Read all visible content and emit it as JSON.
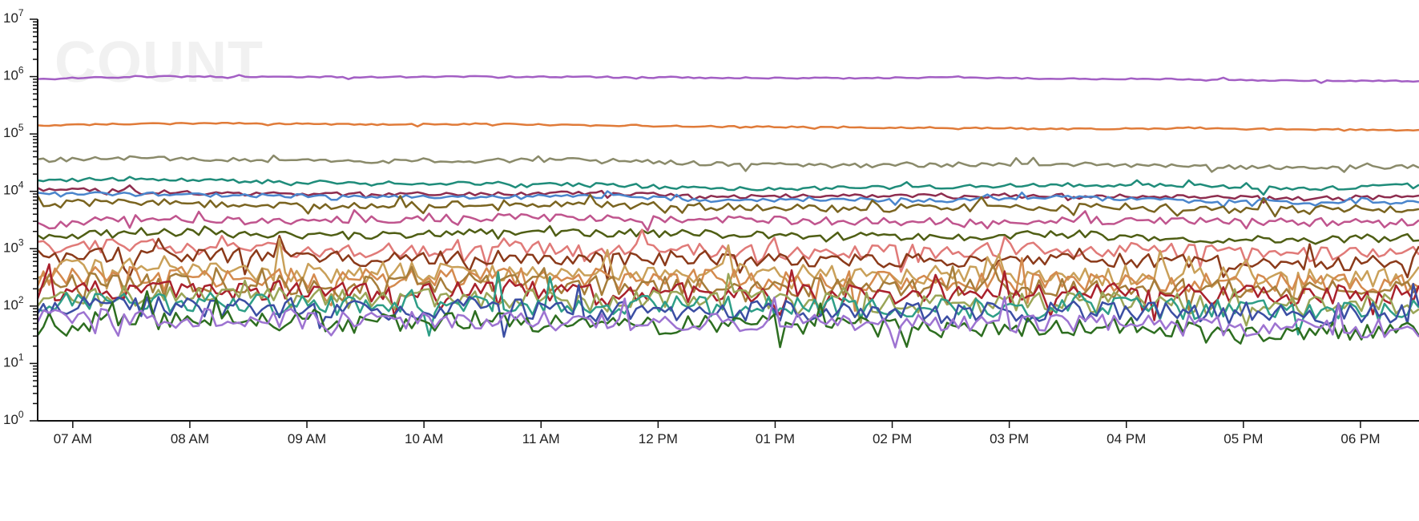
{
  "chart_data": {
    "type": "line",
    "title": "",
    "watermark": "COUNT",
    "xlabel": "",
    "ylabel": "",
    "y_scale": "log",
    "ylim": [
      1,
      10000000
    ],
    "y_tick_labels": [
      {
        "base": "10",
        "exp": "0",
        "value": 1
      },
      {
        "base": "10",
        "exp": "1",
        "value": 10
      },
      {
        "base": "10",
        "exp": "2",
        "value": 100
      },
      {
        "base": "10",
        "exp": "3",
        "value": 1000
      },
      {
        "base": "10",
        "exp": "4",
        "value": 10000
      },
      {
        "base": "10",
        "exp": "5",
        "value": 100000
      },
      {
        "base": "10",
        "exp": "6",
        "value": 1000000
      },
      {
        "base": "10",
        "exp": "7",
        "value": 10000000
      }
    ],
    "x_time_range": [
      "06:42",
      "18:30"
    ],
    "x_ticks": [
      {
        "label": "07 AM",
        "time": "07:00"
      },
      {
        "label": "08 AM",
        "time": "08:00"
      },
      {
        "label": "09 AM",
        "time": "09:00"
      },
      {
        "label": "10 AM",
        "time": "10:00"
      },
      {
        "label": "11 AM",
        "time": "11:00"
      },
      {
        "label": "12 PM",
        "time": "12:00"
      },
      {
        "label": "01 PM",
        "time": "13:00"
      },
      {
        "label": "02 PM",
        "time": "14:00"
      },
      {
        "label": "03 PM",
        "time": "15:00"
      },
      {
        "label": "04 PM",
        "time": "16:00"
      },
      {
        "label": "05 PM",
        "time": "17:00"
      },
      {
        "label": "06 PM",
        "time": "18:00"
      }
    ],
    "grid": false,
    "legend": "none",
    "x": [
      "06:42",
      "07:30",
      "08:30",
      "09:30",
      "10:30",
      "11:30",
      "12:30",
      "13:30",
      "14:30",
      "15:30",
      "16:30",
      "17:30",
      "18:30"
    ],
    "series": [
      {
        "color": "#a35fc4",
        "values": [
          900000,
          1000000,
          1000000,
          980000,
          1000000,
          980000,
          950000,
          940000,
          960000,
          920000,
          900000,
          850000,
          830000
        ]
      },
      {
        "color": "#e07b39",
        "values": [
          140000,
          150000,
          155000,
          145000,
          150000,
          140000,
          135000,
          130000,
          128000,
          122000,
          125000,
          120000,
          118000
        ]
      },
      {
        "color": "#8a8a6a",
        "values": [
          35000,
          38000,
          35000,
          33000,
          34000,
          36000,
          30000,
          28000,
          29000,
          30000,
          27000,
          26000,
          27000
        ]
      },
      {
        "color": "#1f8c7a",
        "values": [
          15000,
          17000,
          15000,
          14000,
          14000,
          13000,
          11000,
          11500,
          12000,
          13000,
          12500,
          11000,
          13000
        ]
      },
      {
        "color": "#8e2d4f",
        "values": [
          11000,
          10000,
          9000,
          9000,
          9000,
          9500,
          8000,
          8500,
          8000,
          8500,
          8000,
          7500,
          8000
        ]
      },
      {
        "color": "#4a85cc",
        "values": [
          9000,
          9000,
          8500,
          8000,
          8000,
          8200,
          7000,
          7200,
          7000,
          8000,
          7000,
          6500,
          6800
        ]
      },
      {
        "color": "#7a6420",
        "values": [
          6000,
          6500,
          6000,
          5500,
          6000,
          5800,
          5500,
          5000,
          5200,
          5500,
          5000,
          4800,
          5000
        ]
      },
      {
        "color": "#c0558e",
        "values": [
          2500,
          3500,
          3000,
          3200,
          3500,
          3300,
          3200,
          3000,
          3000,
          3100,
          3000,
          2800,
          2900
        ]
      },
      {
        "color": "#4f5e14",
        "values": [
          1500,
          2000,
          1800,
          1700,
          2000,
          1900,
          1800,
          1700,
          1600,
          1800,
          1500,
          1400,
          1600
        ]
      },
      {
        "color": "#e07a78",
        "values": [
          1000,
          1100,
          1000,
          900,
          1100,
          950,
          900,
          850,
          900,
          1000,
          900,
          800,
          850
        ]
      },
      {
        "color": "#8b3a1a",
        "values": [
          700,
          800,
          750,
          650,
          700,
          650,
          700,
          650,
          600,
          650,
          600,
          550,
          600
        ]
      },
      {
        "color": "#c9a059",
        "values": [
          450,
          450,
          400,
          380,
          400,
          350,
          380,
          350,
          330,
          350,
          330,
          300,
          320
        ]
      },
      {
        "color": "#d48a4e",
        "values": [
          320,
          350,
          320,
          300,
          320,
          280,
          300,
          270,
          260,
          280,
          260,
          240,
          250
        ]
      },
      {
        "color": "#a67d3a",
        "values": [
          250,
          260,
          240,
          230,
          250,
          220,
          230,
          210,
          200,
          220,
          200,
          190,
          200
        ]
      },
      {
        "color": "#a9212c",
        "values": [
          180,
          200,
          190,
          180,
          200,
          170,
          180,
          170,
          160,
          170,
          160,
          150,
          160
        ]
      },
      {
        "color": "#9aa557",
        "values": [
          130,
          150,
          140,
          130,
          140,
          120,
          130,
          120,
          110,
          120,
          110,
          100,
          110
        ]
      },
      {
        "color": "#2e9e87",
        "values": [
          110,
          120,
          110,
          100,
          110,
          100,
          100,
          95,
          90,
          95,
          90,
          85,
          90
        ]
      },
      {
        "color": "#3b4ea3",
        "values": [
          90,
          100,
          95,
          85,
          90,
          80,
          85,
          80,
          75,
          80,
          75,
          70,
          75
        ]
      },
      {
        "color": "#2d6e20",
        "values": [
          50,
          60,
          55,
          50,
          55,
          45,
          50,
          45,
          40,
          45,
          40,
          35,
          40
        ]
      },
      {
        "color": "#9d73d1",
        "values": [
          60,
          65,
          60,
          60,
          60,
          55,
          55,
          55,
          50,
          50,
          45,
          45,
          40
        ]
      }
    ]
  }
}
